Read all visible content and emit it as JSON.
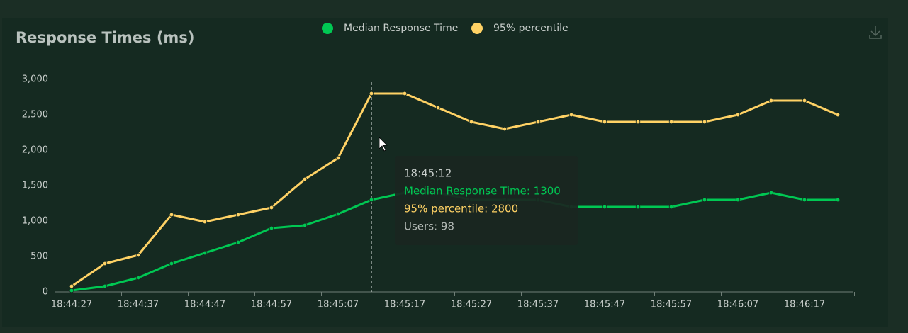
{
  "chart_data": {
    "type": "line",
    "title": "Response Times (ms)",
    "categories": [
      "18:44:27",
      null,
      "18:44:37",
      null,
      "18:44:47",
      null,
      "18:44:57",
      null,
      "18:45:07",
      null,
      "18:45:17",
      null,
      "18:45:27",
      null,
      "18:45:37",
      null,
      "18:45:47",
      null,
      "18:45:57",
      null,
      "18:46:07",
      null,
      "18:46:17",
      null
    ],
    "series": [
      {
        "name": "Median Response Time",
        "color": "#00c853",
        "values": [
          20,
          80,
          200,
          400,
          550,
          700,
          900,
          940,
          1100,
          1300,
          1400,
          1400,
          1300,
          1300,
          1300,
          1200,
          1200,
          1200,
          1200,
          1300,
          1300,
          1400,
          1300,
          1300
        ]
      },
      {
        "name": "95% percentile",
        "color": "#ffd265",
        "values": [
          80,
          400,
          520,
          1090,
          990,
          1090,
          1190,
          1590,
          1890,
          2800,
          2800,
          2600,
          2400,
          2300,
          2400,
          2500,
          2400,
          2400,
          2400,
          2400,
          2500,
          2700,
          2700,
          2500
        ]
      }
    ],
    "ylim": [
      0,
      3000
    ],
    "yticks": [
      0,
      500,
      {
        "value": 1000,
        "label": "1,000"
      },
      {
        "value": 1500,
        "label": "1,500"
      },
      {
        "value": 2000,
        "label": "2,000"
      },
      {
        "value": 2500,
        "label": "2,500"
      },
      {
        "value": 3000,
        "label": "3,000"
      }
    ],
    "legend": "top",
    "tooltip": {
      "index": 9,
      "title": "18:45:12",
      "lines": [
        "Median Response Time: 1300",
        "95% percentile: 2800",
        "Users: 98"
      ]
    }
  }
}
